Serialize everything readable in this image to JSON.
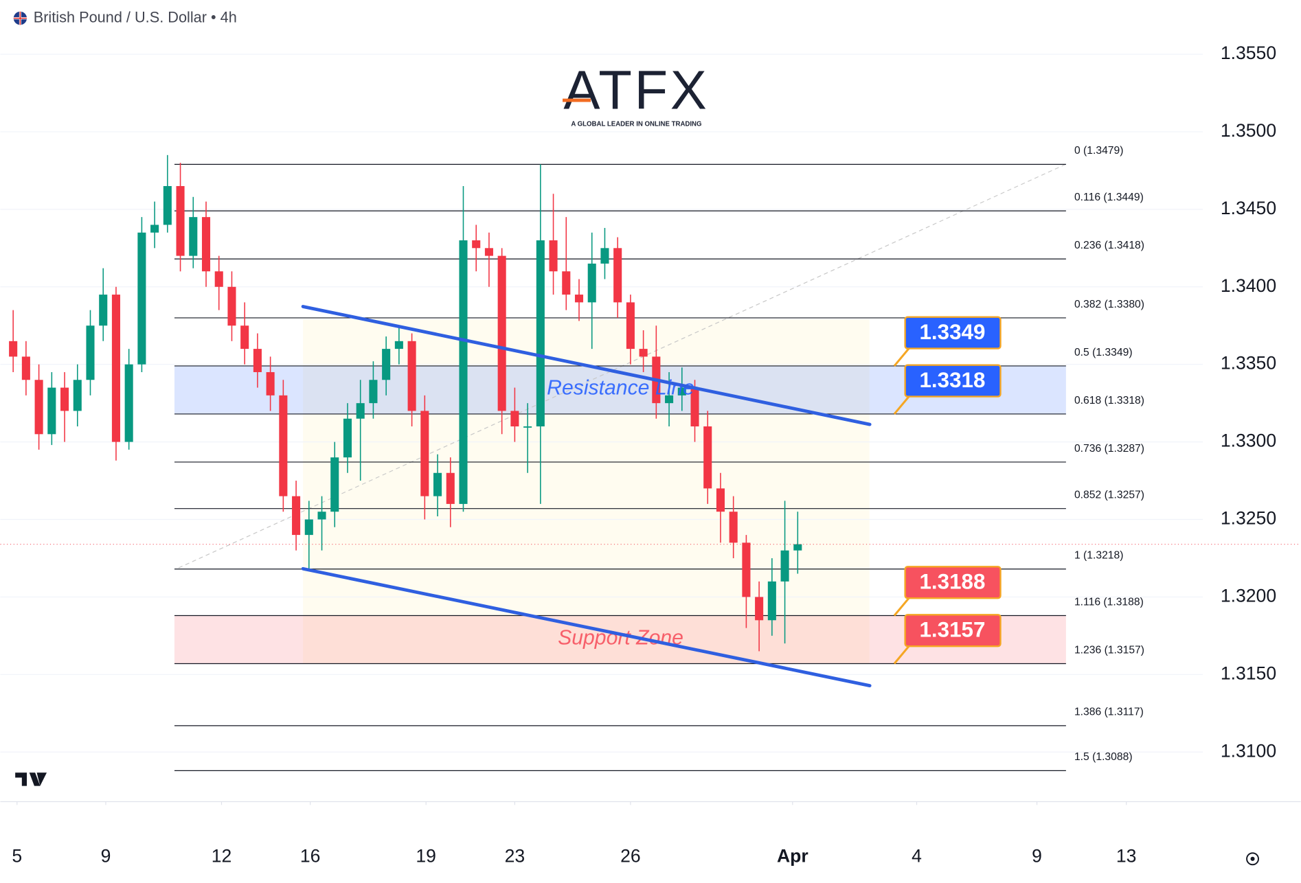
{
  "header": {
    "symbol": "British Pound / U.S. Dollar • 4h",
    "logo": "ATFX",
    "tagline": "A GLOBAL LEADER IN ONLINE TRADING"
  },
  "chart_data": {
    "type": "candlestick",
    "up_color": "#089981",
    "down_color": "#f23645",
    "x": [
      2,
      4,
      6,
      8,
      10,
      12,
      14,
      16,
      18,
      20,
      22,
      24,
      26,
      28,
      30,
      32,
      34,
      36,
      38,
      40,
      42,
      44,
      46,
      48,
      50,
      52,
      54,
      56,
      58,
      60,
      62,
      64,
      66,
      68,
      70,
      72,
      74,
      76,
      78,
      80,
      82,
      84,
      86,
      88,
      90,
      92,
      94,
      96,
      98,
      100,
      102,
      104,
      106,
      108,
      110,
      112,
      114,
      116,
      118,
      120,
      122,
      124
    ],
    "open": [
      1.3365,
      1.3355,
      1.334,
      1.3305,
      1.3335,
      1.332,
      1.334,
      1.3375,
      1.3395,
      1.33,
      1.335,
      1.3435,
      1.344,
      1.3465,
      1.342,
      1.3445,
      1.341,
      1.34,
      1.3375,
      1.336,
      1.3345,
      1.333,
      1.3265,
      1.324,
      1.325,
      1.3255,
      1.329,
      1.3315,
      1.3325,
      1.334,
      1.336,
      1.3365,
      1.332,
      1.3265,
      1.328,
      1.326,
      1.343,
      1.3425,
      1.342,
      1.332,
      1.331,
      1.331,
      1.343,
      1.341,
      1.3395,
      1.339,
      1.3415,
      1.3425,
      1.339,
      1.336,
      1.3355,
      1.3325,
      1.333,
      1.3335,
      1.331,
      1.327,
      1.3255,
      1.3235,
      1.32,
      1.3185,
      1.321,
      1.323
    ],
    "high": [
      1.3385,
      1.3365,
      1.335,
      1.3345,
      1.3345,
      1.335,
      1.3385,
      1.3412,
      1.34,
      1.336,
      1.3445,
      1.3455,
      1.3485,
      1.348,
      1.3458,
      1.3455,
      1.342,
      1.341,
      1.339,
      1.337,
      1.3355,
      1.334,
      1.3275,
      1.3262,
      1.3265,
      1.33,
      1.3325,
      1.334,
      1.3352,
      1.3368,
      1.3375,
      1.337,
      1.333,
      1.3292,
      1.329,
      1.3465,
      1.344,
      1.3435,
      1.3425,
      1.3335,
      1.3325,
      1.3479,
      1.346,
      1.3445,
      1.3405,
      1.3435,
      1.3438,
      1.3432,
      1.3395,
      1.3372,
      1.3375,
      1.3345,
      1.3348,
      1.334,
      1.332,
      1.328,
      1.3265,
      1.324,
      1.321,
      1.3225,
      1.3262,
      1.3255
    ],
    "low": [
      1.3345,
      1.333,
      1.3295,
      1.3298,
      1.33,
      1.331,
      1.333,
      1.3365,
      1.3288,
      1.3295,
      1.3345,
      1.3425,
      1.3435,
      1.341,
      1.3412,
      1.34,
      1.3385,
      1.3365,
      1.335,
      1.3335,
      1.332,
      1.3255,
      1.323,
      1.3218,
      1.323,
      1.3245,
      1.328,
      1.3275,
      1.3315,
      1.333,
      1.335,
      1.331,
      1.325,
      1.3252,
      1.3245,
      1.3255,
      1.341,
      1.34,
      1.3305,
      1.33,
      1.328,
      1.326,
      1.3395,
      1.3385,
      1.3378,
      1.336,
      1.3405,
      1.338,
      1.335,
      1.3345,
      1.3315,
      1.331,
      1.332,
      1.33,
      1.326,
      1.3235,
      1.3225,
      1.318,
      1.3165,
      1.3175,
      1.317,
      1.3215
    ],
    "close": [
      1.3355,
      1.334,
      1.3305,
      1.3335,
      1.332,
      1.334,
      1.3375,
      1.3395,
      1.33,
      1.335,
      1.3435,
      1.344,
      1.3465,
      1.342,
      1.3445,
      1.341,
      1.34,
      1.3375,
      1.336,
      1.3345,
      1.333,
      1.3265,
      1.324,
      1.325,
      1.3255,
      1.329,
      1.3315,
      1.3325,
      1.334,
      1.336,
      1.3365,
      1.332,
      1.3265,
      1.328,
      1.326,
      1.343,
      1.3425,
      1.342,
      1.332,
      1.331,
      1.331,
      1.343,
      1.341,
      1.3395,
      1.339,
      1.3415,
      1.3425,
      1.339,
      1.336,
      1.3355,
      1.3325,
      1.333,
      1.3335,
      1.331,
      1.327,
      1.3255,
      1.3235,
      1.32,
      1.3185,
      1.321,
      1.323,
      1.3234
    ],
    "xlim": [
      0,
      187
    ],
    "xticks": [
      {
        "value": 2.6,
        "label": "5"
      },
      {
        "value": 16.4,
        "label": "9"
      },
      {
        "value": 34.4,
        "label": "12"
      },
      {
        "value": 48.2,
        "label": "16"
      },
      {
        "value": 66.2,
        "label": "19"
      },
      {
        "value": 80,
        "label": "23"
      },
      {
        "value": 98,
        "label": "26"
      },
      {
        "value": 123.2,
        "label": "Apr"
      },
      {
        "value": 142.5,
        "label": "4"
      },
      {
        "value": 161.2,
        "label": "9"
      },
      {
        "value": 175.1,
        "label": "13"
      }
    ],
    "ylim": [
      1.3068,
      1.3585
    ],
    "yticks": [
      {
        "value": 1.355,
        "label": "1.3550"
      },
      {
        "value": 1.35,
        "label": "1.3500"
      },
      {
        "value": 1.345,
        "label": "1.3450"
      },
      {
        "value": 1.34,
        "label": "1.3400"
      },
      {
        "value": 1.335,
        "label": "1.3350"
      },
      {
        "value": 1.33,
        "label": "1.3300"
      },
      {
        "value": 1.325,
        "label": "1.3250"
      },
      {
        "value": 1.32,
        "label": "1.3200"
      },
      {
        "value": 1.315,
        "label": "1.3150"
      },
      {
        "value": 1.31,
        "label": "1.3100"
      }
    ],
    "grid": true,
    "fib_levels": [
      {
        "value": 1.3479,
        "label": "0 (1.3479)"
      },
      {
        "value": 1.3449,
        "label": "0.116 (1.3449)"
      },
      {
        "value": 1.3418,
        "label": "0.236 (1.3418)"
      },
      {
        "value": 1.338,
        "label": "0.382 (1.3380)"
      },
      {
        "value": 1.3349,
        "label": "0.5 (1.3349)"
      },
      {
        "value": 1.3318,
        "label": "0.618 (1.3318)"
      },
      {
        "value": 1.3287,
        "label": "0.736 (1.3287)"
      },
      {
        "value": 1.3257,
        "label": "0.852 (1.3257)"
      },
      {
        "value": 1.3218,
        "label": "1 (1.3218)"
      },
      {
        "value": 1.3188,
        "label": "1.116 (1.3188)"
      },
      {
        "value": 1.3157,
        "label": "1.236 (1.3157)"
      },
      {
        "value": 1.3117,
        "label": "1.386 (1.3117)"
      },
      {
        "value": 1.3088,
        "label": "1.5 (1.3088)"
      }
    ],
    "zones": [
      {
        "label": "Resistance Line",
        "low": 1.3318,
        "high": 1.3349,
        "color": "#2962ff"
      },
      {
        "label": "Support Zone",
        "low": 1.3157,
        "high": 1.3188,
        "color": "#f7525f"
      }
    ],
    "trendlines": [
      {
        "x": [
          47.07,
          135.2
        ],
        "y": [
          1.33873,
          1.33113
        ],
        "color": "#2f5fe0"
      },
      {
        "x": [
          47.07,
          135.2
        ],
        "y": [
          1.32182,
          1.31428
        ],
        "color": "#2f5fe0"
      }
    ],
    "price_labels": [
      {
        "value": 1.3349,
        "color": "#2962ff"
      },
      {
        "value": 1.3318,
        "color": "#2962ff"
      },
      {
        "value": 1.3188,
        "color": "#f7525f"
      },
      {
        "value": 1.3157,
        "color": "#f7525f"
      }
    ]
  }
}
